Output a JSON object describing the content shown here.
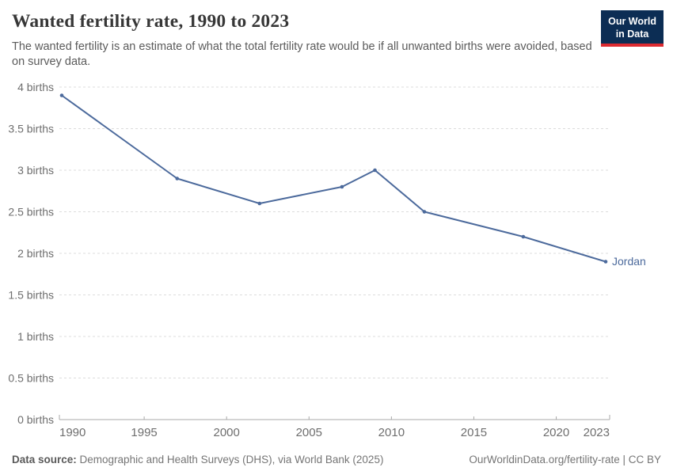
{
  "header": {
    "title": "Wanted fertility rate, 1990 to 2023",
    "subtitle": "The wanted fertility is an estimate of what the total fertility rate would be if all unwanted births were avoided, based on survey data.",
    "logo": {
      "line1": "Our World",
      "line2": "in Data"
    }
  },
  "chart_data": {
    "type": "line",
    "title": "Wanted fertility rate, 1990 to 2023",
    "entity": "Jordan",
    "x": [
      1990,
      1997,
      2002,
      2007,
      2009,
      2012,
      2018,
      2023
    ],
    "values": [
      3.9,
      2.9,
      2.6,
      2.8,
      3.0,
      2.5,
      2.2,
      1.9
    ],
    "xlim": [
      1990,
      2023
    ],
    "ylim": [
      0,
      4
    ],
    "x_ticks": [
      1990,
      1995,
      2000,
      2005,
      2010,
      2015,
      2020,
      2023
    ],
    "y_ticks": [
      0,
      0.5,
      1,
      1.5,
      2,
      2.5,
      3,
      3.5,
      4
    ],
    "y_tick_labels": [
      "0 births",
      "0.5 births",
      "1 births",
      "1.5 births",
      "2 births",
      "2.5 births",
      "3 births",
      "3.5 births",
      "4 births"
    ],
    "xlabel": "",
    "ylabel": "",
    "grid": true,
    "legend_position": "end-of-line",
    "line_color": "#4c6a9c",
    "grid_color": "#dcdcdc",
    "axis_color": "#a8a8a8",
    "tick_label_color": "#6e6e6e"
  },
  "footer": {
    "source_label": "Data source:",
    "source_text": " Demographic and Health Surveys (DHS), via World Bank (2025)",
    "credit": "OurWorldinData.org/fertility-rate | CC BY"
  }
}
